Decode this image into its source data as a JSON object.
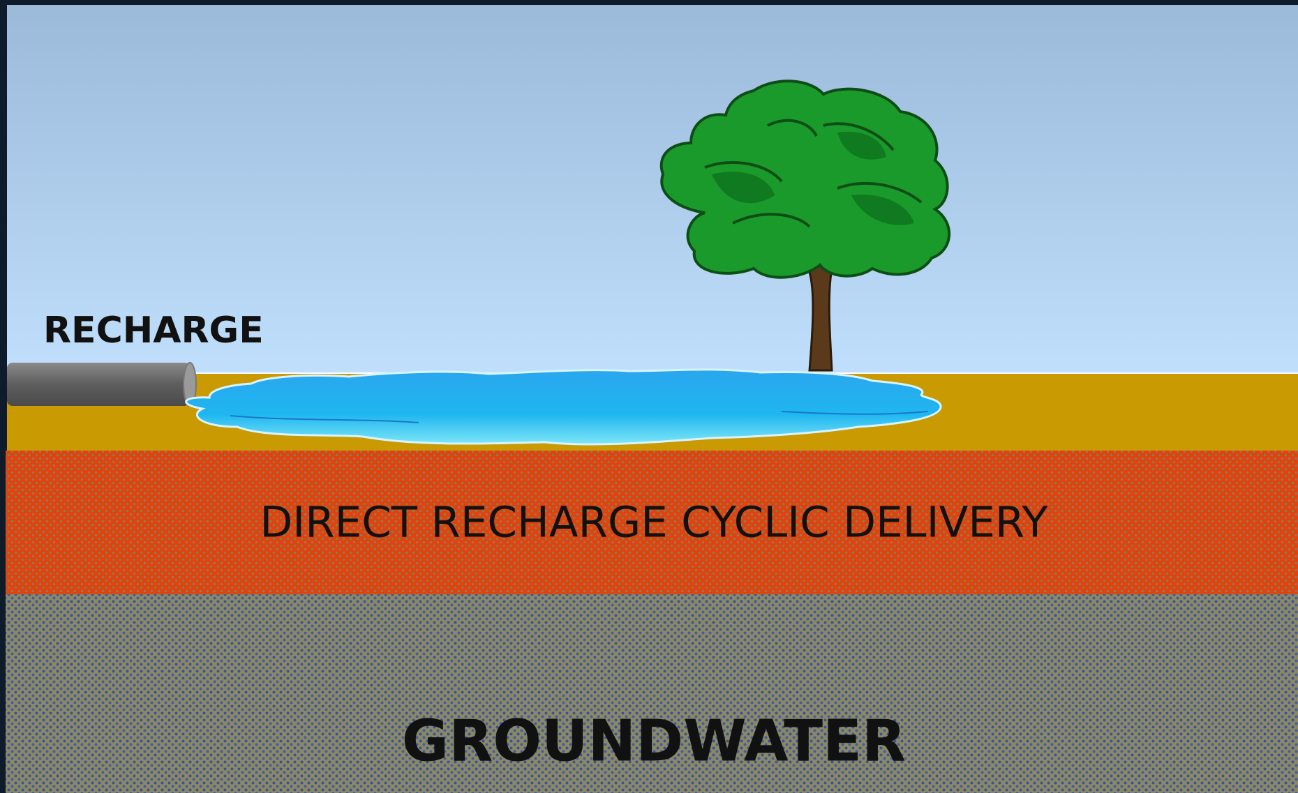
{
  "labels": {
    "inlet": "RECHARGE",
    "layer": "DIRECT RECHARGE CYCLIC DELIVERY",
    "aquifer": "GROUNDWATER"
  }
}
